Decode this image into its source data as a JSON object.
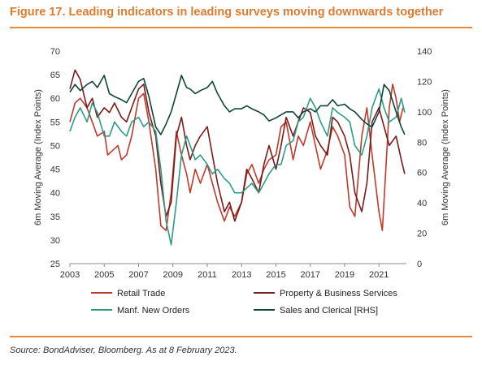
{
  "title": "Figure 17. Leading indicators in leading surveys moving downwards together",
  "source": "Source: BondAdviser, Bloomberg. As at 8 February 2023.",
  "chart_data": {
    "type": "line",
    "ylabel": "6m Moving Average (Index Points)",
    "y2label": "6m Moving Average (Index Points)",
    "ylim": [
      25,
      70
    ],
    "y2lim": [
      0,
      140
    ],
    "xlim": [
      2003,
      2022.6
    ],
    "x_ticks": [
      "2003",
      "2005",
      "2007",
      "2009",
      "2011",
      "2013",
      "2015",
      "2017",
      "2019",
      "2021"
    ],
    "y_ticks": [
      "70",
      "65",
      "60",
      "55",
      "50",
      "45",
      "40",
      "35",
      "30",
      "25"
    ],
    "y2_ticks": [
      "140",
      "120",
      "100",
      "80",
      "60",
      "40",
      "20",
      "0"
    ],
    "legend_position": "bottom",
    "grid": false,
    "series": [
      {
        "name": "Retail Trade",
        "axis": "left",
        "color": "#c0392b",
        "x": [
          2003.0,
          2003.3,
          2003.6,
          2004.0,
          2004.3,
          2004.6,
          2005.0,
          2005.2,
          2005.5,
          2005.8,
          2006.0,
          2006.3,
          2006.6,
          2007.0,
          2007.3,
          2007.6,
          2008.0,
          2008.3,
          2008.6,
          2008.9,
          2009.2,
          2009.5,
          2009.8,
          2010.0,
          2010.3,
          2010.6,
          2011.0,
          2011.3,
          2011.6,
          2012.0,
          2012.3,
          2012.6,
          2013.0,
          2013.3,
          2013.6,
          2014.0,
          2014.3,
          2014.6,
          2015.0,
          2015.3,
          2015.6,
          2016.0,
          2016.3,
          2016.6,
          2017.0,
          2017.3,
          2017.6,
          2018.0,
          2018.3,
          2018.6,
          2019.0,
          2019.3,
          2019.6,
          2020.0,
          2020.3,
          2020.6,
          2021.0,
          2021.2,
          2021.4,
          2021.6,
          2021.8,
          2022.0,
          2022.2,
          2022.4
        ],
        "y": [
          55,
          59,
          60,
          58,
          55,
          52,
          53,
          48,
          49,
          50,
          47,
          48,
          52,
          60,
          61,
          55,
          45,
          33,
          32,
          40,
          53,
          48,
          44,
          40,
          45,
          42,
          46,
          42,
          38,
          34,
          37,
          35,
          38,
          44,
          46,
          42,
          45,
          47,
          48,
          54,
          55,
          47,
          52,
          50,
          55,
          50,
          45,
          49,
          54,
          52,
          48,
          37,
          35,
          52,
          58,
          48,
          36,
          32,
          45,
          58,
          63,
          60,
          55,
          58
        ]
      },
      {
        "name": "Property & Business Services",
        "axis": "left",
        "color": "#7b1a1a",
        "x": [
          2003.0,
          2003.3,
          2003.6,
          2004.0,
          2004.3,
          2004.6,
          2005.0,
          2005.3,
          2005.6,
          2006.0,
          2006.3,
          2006.6,
          2007.0,
          2007.3,
          2007.6,
          2008.0,
          2008.3,
          2008.6,
          2008.9,
          2009.2,
          2009.5,
          2009.8,
          2010.0,
          2010.3,
          2010.6,
          2011.0,
          2011.3,
          2011.6,
          2012.0,
          2012.3,
          2012.6,
          2013.0,
          2013.3,
          2013.6,
          2014.0,
          2014.3,
          2014.6,
          2015.0,
          2015.3,
          2015.6,
          2016.0,
          2016.3,
          2016.6,
          2017.0,
          2017.3,
          2017.6,
          2018.0,
          2018.3,
          2018.6,
          2019.0,
          2019.3,
          2019.6,
          2020.0,
          2020.3,
          2020.6,
          2021.0,
          2021.3,
          2021.6,
          2022.0,
          2022.3,
          2022.5
        ],
        "y": [
          62,
          66,
          64,
          58,
          60,
          56,
          58,
          57,
          59,
          56,
          55,
          58,
          62,
          63,
          57,
          52,
          42,
          35,
          38,
          52,
          56,
          50,
          47,
          50,
          52,
          54,
          48,
          42,
          36,
          38,
          34,
          38,
          45,
          43,
          40,
          46,
          50,
          45,
          50,
          56,
          52,
          55,
          58,
          57,
          52,
          50,
          48,
          56,
          55,
          52,
          48,
          40,
          36,
          42,
          55,
          58,
          54,
          50,
          52,
          47,
          44
        ]
      },
      {
        "name": "Manf. New Orders",
        "axis": "left",
        "color": "#2e9b85",
        "x": [
          2003.0,
          2003.3,
          2003.6,
          2004.0,
          2004.3,
          2004.6,
          2005.0,
          2005.3,
          2005.6,
          2006.0,
          2006.3,
          2006.6,
          2007.0,
          2007.3,
          2007.6,
          2008.0,
          2008.3,
          2008.6,
          2008.9,
          2009.2,
          2009.5,
          2009.8,
          2010.0,
          2010.3,
          2010.6,
          2011.0,
          2011.3,
          2011.6,
          2012.0,
          2012.3,
          2012.6,
          2013.0,
          2013.3,
          2013.6,
          2014.0,
          2014.3,
          2014.6,
          2015.0,
          2015.3,
          2015.6,
          2016.0,
          2016.3,
          2016.6,
          2017.0,
          2017.3,
          2017.6,
          2018.0,
          2018.3,
          2018.6,
          2019.0,
          2019.3,
          2019.6,
          2020.0,
          2020.3,
          2020.6,
          2021.0,
          2021.3,
          2021.6,
          2022.0,
          2022.3,
          2022.5
        ],
        "y": [
          53,
          56,
          58,
          55,
          59,
          57,
          52,
          52,
          55,
          53,
          52,
          55,
          56,
          54,
          55,
          53,
          45,
          34,
          29,
          38,
          48,
          52,
          50,
          47,
          48,
          46,
          44,
          45,
          43,
          42,
          40,
          40,
          41,
          42,
          40,
          42,
          44,
          46,
          46,
          50,
          51,
          55,
          56,
          60,
          58,
          55,
          52,
          58,
          57,
          56,
          55,
          50,
          48,
          52,
          58,
          62,
          58,
          55,
          56,
          60,
          57
        ]
      },
      {
        "name": "Sales and Clerical [RHS]",
        "axis": "right",
        "color": "#0e4538",
        "x": [
          2003.0,
          2003.3,
          2003.6,
          2004.0,
          2004.3,
          2004.6,
          2005.0,
          2005.3,
          2005.6,
          2006.0,
          2006.3,
          2006.6,
          2007.0,
          2007.3,
          2007.6,
          2008.0,
          2008.3,
          2008.6,
          2008.9,
          2009.2,
          2009.5,
          2009.8,
          2010.0,
          2010.3,
          2010.6,
          2011.0,
          2011.3,
          2011.6,
          2012.0,
          2012.3,
          2012.6,
          2013.0,
          2013.3,
          2013.6,
          2014.0,
          2014.3,
          2014.6,
          2015.0,
          2015.3,
          2015.6,
          2016.0,
          2016.3,
          2016.6,
          2017.0,
          2017.3,
          2017.6,
          2018.0,
          2018.3,
          2018.6,
          2019.0,
          2019.3,
          2019.6,
          2020.0,
          2020.3,
          2020.6,
          2021.0,
          2021.3,
          2021.6,
          2022.0,
          2022.3,
          2022.5
        ],
        "y": [
          113,
          118,
          114,
          118,
          120,
          116,
          124,
          112,
          110,
          108,
          106,
          112,
          120,
          122,
          110,
          90,
          85,
          92,
          100,
          112,
          124,
          116,
          115,
          112,
          114,
          116,
          120,
          112,
          104,
          100,
          102,
          102,
          104,
          102,
          100,
          98,
          94,
          96,
          98,
          100,
          100,
          96,
          100,
          102,
          100,
          104,
          104,
          108,
          104,
          105,
          102,
          100,
          95,
          92,
          90,
          100,
          118,
          114,
          100,
          90,
          85
        ]
      }
    ]
  }
}
